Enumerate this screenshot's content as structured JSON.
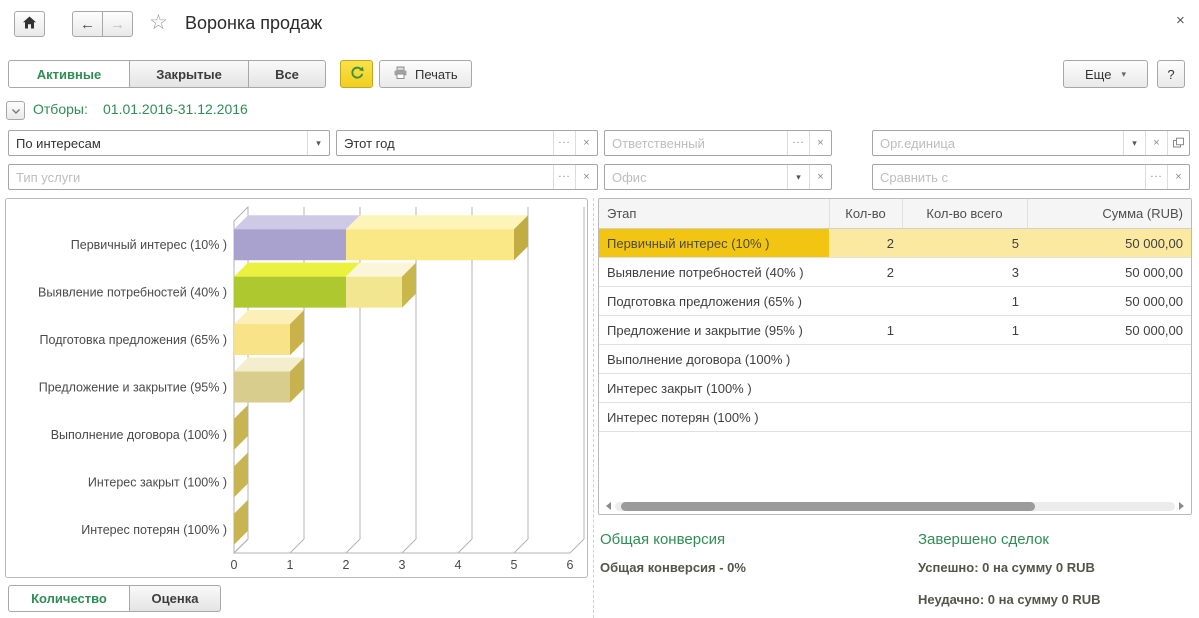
{
  "window": {
    "title": "Воронка продаж",
    "close_glyph": "×"
  },
  "nav": {
    "back_glyph": "←",
    "forward_glyph": "→",
    "favorite_glyph": "☆"
  },
  "toolbar": {
    "tabs": [
      {
        "label": "Активные",
        "active": true
      },
      {
        "label": "Закрытые",
        "active": false
      },
      {
        "label": "Все",
        "active": false
      }
    ],
    "print_label": "Печать",
    "more_label": "Еще",
    "more_arrow": "▾",
    "help_label": "?"
  },
  "filters": {
    "summary_label": "Отборы:",
    "summary_value": "01.01.2016-31.12.2016",
    "fields": [
      {
        "name": "view-mode",
        "value": "По интересам",
        "buttons": [
          "dropdown"
        ]
      },
      {
        "name": "period",
        "value": "Этот год",
        "buttons": [
          "more",
          "clear"
        ]
      },
      {
        "name": "responsible",
        "placeholder": "Ответственный",
        "buttons": [
          "more",
          "clear"
        ]
      },
      {
        "name": "org-unit",
        "placeholder": "Орг.единица",
        "buttons": [
          "dropdown",
          "clear",
          "open"
        ]
      },
      {
        "name": "service-type",
        "placeholder": "Тип услуги",
        "buttons": [
          "more",
          "clear"
        ]
      },
      {
        "name": "office",
        "placeholder": "Офис",
        "buttons": [
          "dropdown",
          "clear"
        ]
      },
      {
        "name": "compare-with",
        "placeholder": "Сравнить с",
        "buttons": [
          "more",
          "clear"
        ]
      }
    ]
  },
  "icons": {
    "dropdown": "▾",
    "more": "...",
    "clear": "×"
  },
  "chart_data": {
    "type": "bar",
    "orientation": "horizontal-3d",
    "title": "",
    "categories": [
      "Первичный интерес (10% )",
      "Выявление потребностей (40% )",
      "Подготовка предложения (65% )",
      "Предложение и закрытие (95% )",
      "Выполнение договора (100% )",
      "Интерес закрыт (100% )",
      "Интерес потерян (100% )"
    ],
    "series": [
      {
        "name": "Кол-во",
        "values": [
          2,
          2,
          0,
          1,
          0,
          0,
          0
        ]
      },
      {
        "name": "Кол-во всего",
        "values": [
          5,
          3,
          1,
          1,
          0,
          0,
          0
        ]
      }
    ],
    "xlim": [
      0,
      6
    ],
    "xticks": [
      "0",
      "1",
      "2",
      "3",
      "4",
      "5",
      "6"
    ],
    "grid": true,
    "legend": false,
    "bar_segments": [
      [
        {
          "from": 0,
          "to": 2,
          "face": "#a9a1ce",
          "top": "#cecae6"
        },
        {
          "from": 2,
          "to": 5,
          "face": "#fae886",
          "top": "#fdf4ba",
          "side": "#c2ad43"
        }
      ],
      [
        {
          "from": 0,
          "to": 2,
          "face": "#aec92f",
          "top": "#eaf23f"
        },
        {
          "from": 2,
          "to": 3,
          "face": "#f3e690",
          "top": "#fbf6d9",
          "side": "#c8b74b"
        }
      ],
      [
        {
          "from": 0,
          "to": 1,
          "face": "#f8e388",
          "top": "#fcf0b8",
          "side": "#c9b24a"
        }
      ],
      [
        {
          "from": 0,
          "to": 1,
          "face": "#d9cd8d",
          "top": "#f3eecd",
          "side": "#c6b350"
        }
      ],
      [],
      [],
      []
    ],
    "zero_marker_color": "#c9b452",
    "grid_color": "#b3b3b3"
  },
  "chart_tabs": [
    {
      "label": "Количество",
      "active": true
    },
    {
      "label": "Оценка",
      "active": false
    }
  ],
  "table": {
    "columns": [
      {
        "label": "Этап"
      },
      {
        "label": "Кол-во"
      },
      {
        "label": "Кол-во всего"
      },
      {
        "label": "Сумма (RUB)"
      }
    ],
    "rows": [
      {
        "selected": true,
        "cells": [
          "Первичный интерес (10% )",
          "2",
          "5",
          "50 000,00"
        ]
      },
      {
        "selected": false,
        "cells": [
          "Выявление потребностей (40% )",
          "2",
          "3",
          "50 000,00"
        ]
      },
      {
        "selected": false,
        "cells": [
          "Подготовка предложения (65% )",
          "",
          "1",
          "50 000,00"
        ]
      },
      {
        "selected": false,
        "cells": [
          "Предложение и закрытие (95% )",
          "1",
          "1",
          "50 000,00"
        ]
      },
      {
        "selected": false,
        "cells": [
          "Выполнение договора (100% )",
          "",
          "",
          ""
        ]
      },
      {
        "selected": false,
        "cells": [
          "Интерес закрыт (100% )",
          "",
          "",
          ""
        ]
      },
      {
        "selected": false,
        "cells": [
          "Интерес потерян (100% )",
          "",
          "",
          ""
        ]
      }
    ]
  },
  "footer": {
    "conversion_title": "Общая конверсия",
    "conversion_value": "Общая конверсия - 0%",
    "deals_title": "Завершено сделок",
    "deals_success": "Успешно: 0 на сумму 0 RUB",
    "deals_fail": "Неудачно: 0 на сумму 0 RUB"
  },
  "colors": {
    "accent_green": "#2f8e55",
    "selected_cell_bg": "#f2c512",
    "selected_row_bg": "#fbe9a2",
    "refresh_button_bg": "#f4d62c"
  }
}
